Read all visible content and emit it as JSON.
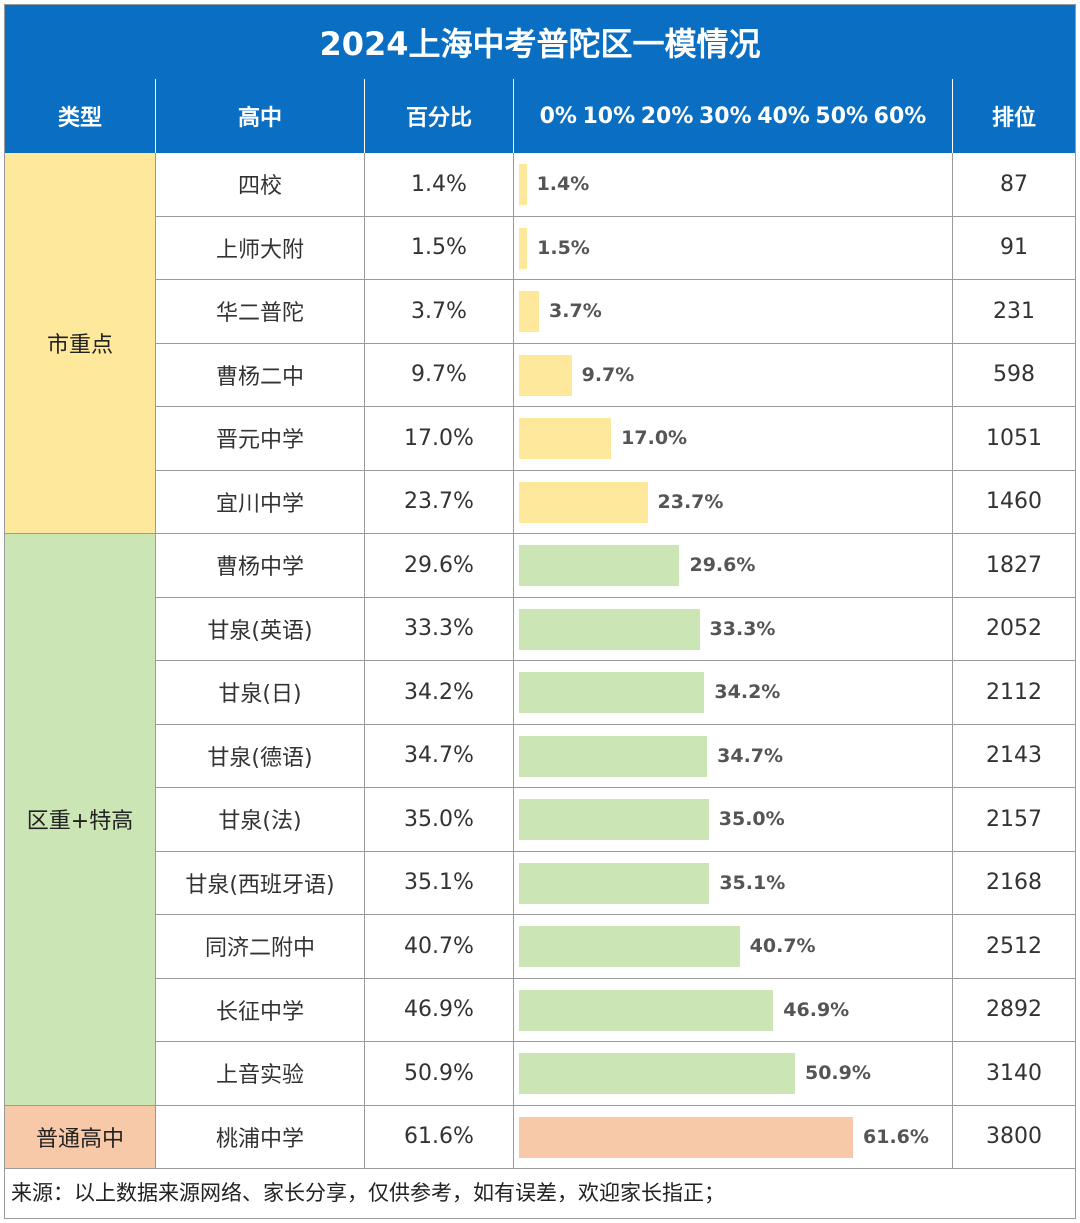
{
  "title": "2024上海中考普陀区一模情况",
  "headers": {
    "type": "类型",
    "school": "高中",
    "percent": "百分比",
    "rank": "排位",
    "axis_ticks": [
      "0%",
      "10%",
      "20%",
      "30%",
      "40%",
      "50%",
      "60%"
    ]
  },
  "groups": [
    {
      "label": "市重点",
      "color": "#fde89b",
      "rows": 6
    },
    {
      "label": "区重+特高",
      "color": "#cce5b4",
      "rows": 9
    },
    {
      "label": "普通高中",
      "color": "#f8c9a8",
      "rows": 1
    }
  ],
  "chart_data": {
    "type": "bar",
    "orientation": "horizontal",
    "xlim": [
      0,
      60
    ],
    "categories": [
      "四校",
      "上师大附",
      "华二普陀",
      "曹杨二中",
      "晋元中学",
      "宜川中学",
      "曹杨中学",
      "甘泉(英语)",
      "甘泉(日)",
      "甘泉(德语)",
      "甘泉(法)",
      "甘泉(西班牙语)",
      "同济二附中",
      "长征中学",
      "上音实验",
      "桃浦中学"
    ],
    "values": [
      1.4,
      1.5,
      3.7,
      9.7,
      17.0,
      23.7,
      29.6,
      33.3,
      34.2,
      34.7,
      35.0,
      35.1,
      40.7,
      46.9,
      50.9,
      61.6
    ],
    "value_labels": [
      "1.4%",
      "1.5%",
      "3.7%",
      "9.7%",
      "17.0%",
      "23.7%",
      "29.6%",
      "33.3%",
      "34.2%",
      "34.7%",
      "35.0%",
      "35.1%",
      "40.7%",
      "46.9%",
      "50.9%",
      "61.6%"
    ],
    "ranks": [
      "87",
      "91",
      "231",
      "598",
      "1051",
      "1460",
      "1827",
      "2052",
      "2112",
      "2143",
      "2157",
      "2168",
      "2512",
      "2892",
      "3140",
      "3800"
    ],
    "group_index": [
      0,
      0,
      0,
      0,
      0,
      0,
      1,
      1,
      1,
      1,
      1,
      1,
      1,
      1,
      1,
      2
    ]
  },
  "footer": "来源：以上数据来源网络、家长分享，仅供参考，如有误差，欢迎家长指正；"
}
